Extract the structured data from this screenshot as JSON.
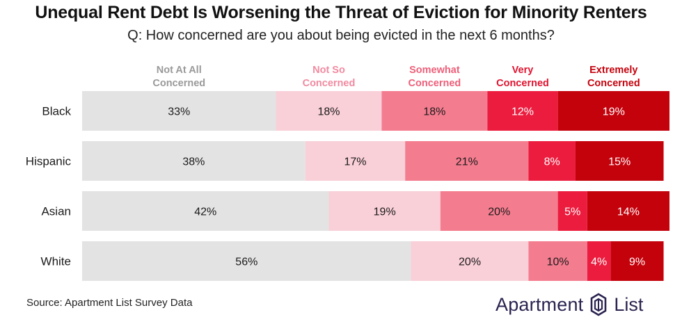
{
  "title": "Unequal Rent Debt Is Worsening the Threat of Eviction for Minority Renters",
  "subtitle": "Q: How concerned are you about being evicted in the next 6 months?",
  "source": "Source: Apartment List Survey Data",
  "brand": {
    "name": "Apartment",
    "list": "List",
    "logo_icon": "apartment-list-logo-icon"
  },
  "chart_data": {
    "type": "bar",
    "orientation": "horizontal",
    "stacked": true,
    "percent_stacked": true,
    "title": "Unequal Rent Debt Is Worsening the Threat of Eviction for Minority Renters",
    "subtitle": "Q: How concerned are you about being evicted in the next 6 months?",
    "categories": [
      "Black",
      "Hispanic",
      "Asian",
      "White"
    ],
    "series": [
      {
        "name": "Not At All Concerned",
        "label_lines": [
          "Not At All",
          "Concerned"
        ],
        "color": "#e3e3e3",
        "label_color": "#9a9a9a",
        "values": [
          33,
          38,
          42,
          56
        ]
      },
      {
        "name": "Not So Concerned",
        "label_lines": [
          "Not So",
          "Concerned"
        ],
        "color": "#f9cfd8",
        "label_color": "#f28aa0",
        "values": [
          18,
          17,
          19,
          20
        ]
      },
      {
        "name": "Somewhat Concerned",
        "label_lines": [
          "Somewhat",
          "Concerned"
        ],
        "color": "#f47c8f",
        "label_color": "#ee5f79",
        "values": [
          18,
          21,
          20,
          10
        ]
      },
      {
        "name": "Very Concerned",
        "label_lines": [
          "Very",
          "Concerned"
        ],
        "color": "#ec1c3e",
        "label_color": "#e0132f",
        "values": [
          12,
          8,
          5,
          4
        ]
      },
      {
        "name": "Extremely Concerned",
        "label_lines": [
          "Extremely",
          "Concerned"
        ],
        "color": "#c4020c",
        "label_color": "#c4020c",
        "values": [
          19,
          15,
          14,
          9
        ]
      }
    ],
    "value_suffix": "%",
    "legend_position": "top",
    "xlim": [
      0,
      100
    ]
  }
}
